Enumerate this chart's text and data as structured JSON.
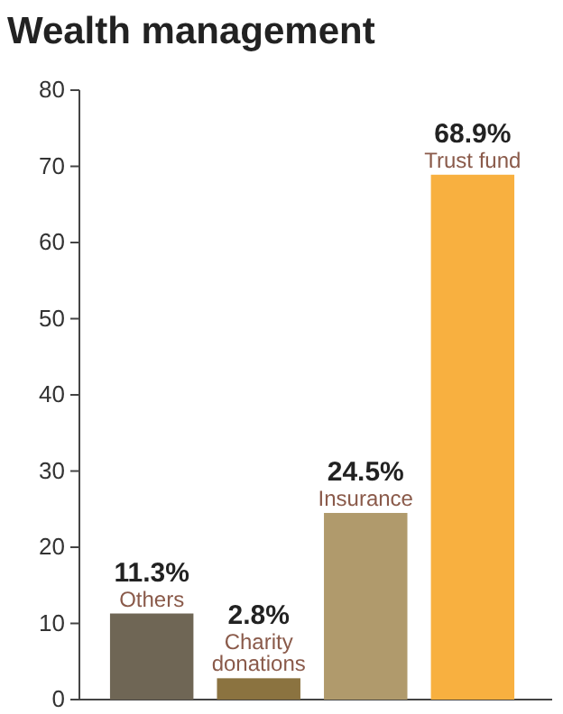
{
  "chart_data": {
    "type": "bar",
    "title": "Wealth management",
    "categories": [
      "Others",
      "Charity donations",
      "Insurance",
      "Trust fund"
    ],
    "values": [
      11.3,
      2.8,
      24.5,
      68.9
    ],
    "colors": [
      "#6f6655",
      "#8b7340",
      "#b09a6c",
      "#f8b040"
    ],
    "value_labels": [
      "11.3%",
      "2.8%",
      "24.5%",
      "68.9%"
    ],
    "ylim": [
      0,
      80
    ],
    "yticks": [
      0,
      10,
      20,
      30,
      40,
      50,
      60,
      70,
      80
    ],
    "grid": false
  }
}
